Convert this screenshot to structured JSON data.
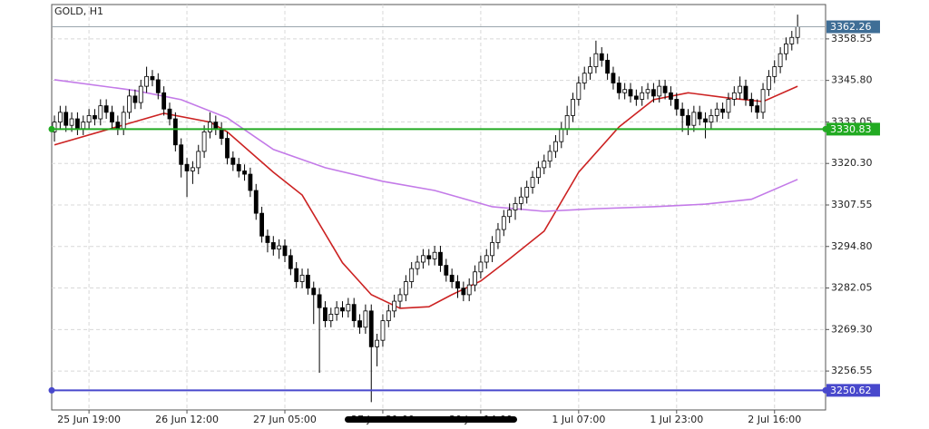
{
  "chart_data": {
    "type": "candlestick",
    "title": "GOLD, H1",
    "categories": [
      null,
      null,
      null,
      null,
      null,
      null,
      "25 Jun 19:00",
      null,
      null,
      null,
      null,
      null,
      null,
      null,
      null,
      null,
      null,
      null,
      null,
      null,
      null,
      null,
      null,
      "26 Jun 12:00",
      null,
      null,
      null,
      null,
      null,
      null,
      null,
      null,
      null,
      null,
      null,
      null,
      null,
      null,
      null,
      null,
      "27 Jun 05:00",
      null,
      null,
      null,
      null,
      null,
      null,
      null,
      null,
      null,
      null,
      null,
      null,
      null,
      null,
      null,
      null,
      "27 Jun 21:00",
      null,
      null,
      null,
      null,
      null,
      null,
      null,
      null,
      null,
      null,
      null,
      null,
      null,
      null,
      null,
      null,
      "30 Jun 14:00",
      null,
      null,
      null,
      null,
      null,
      null,
      null,
      null,
      null,
      null,
      null,
      null,
      null,
      null,
      null,
      null,
      "1 Jul 07:00",
      null,
      null,
      null,
      null,
      null,
      null,
      null,
      null,
      null,
      null,
      null,
      null,
      null,
      null,
      null,
      null,
      "1 Jul 23:00",
      null,
      null,
      null,
      null,
      null,
      null,
      null,
      null,
      null,
      null,
      null,
      null,
      null,
      null,
      null,
      null,
      "2 Jul 16:00",
      null,
      null,
      null,
      null
    ],
    "open": [
      3330,
      3333,
      3336,
      3332,
      3334,
      3331,
      3333,
      3335,
      3334,
      3338,
      3336,
      3333,
      3331,
      3336,
      3341,
      3339,
      3344,
      3347,
      3346,
      3342,
      3337,
      3334,
      3326,
      3320,
      3318,
      3319,
      3324,
      3330,
      3333,
      3331,
      3328,
      3322,
      3320,
      3318,
      3317,
      3312,
      3305,
      3298,
      3296,
      3294,
      3295,
      3292,
      3288,
      3284,
      3286,
      3282,
      3280,
      3276,
      3272,
      3274,
      3276,
      3275,
      3277,
      3272,
      3270,
      3275,
      3264,
      3266,
      3272,
      3275,
      3278,
      3280,
      3284,
      3288,
      3290,
      3292,
      3291,
      3293,
      3289,
      3286,
      3284,
      3282,
      3280,
      3283,
      3287,
      3290,
      3292,
      3296,
      3300,
      3304,
      3306,
      3308,
      3310,
      3313,
      3316,
      3319,
      3321,
      3324,
      3327,
      3331,
      3335,
      3340,
      3345,
      3348,
      3350,
      3354,
      3352,
      3348,
      3345,
      3342,
      3343,
      3341,
      3340,
      3342,
      3343,
      3341,
      3344,
      3342,
      3340,
      3337,
      3335,
      3332,
      3336,
      3334,
      3333,
      3335,
      3337,
      3336,
      3340,
      3342,
      3344,
      3340,
      3338,
      3336,
      3343,
      3347,
      3350,
      3354,
      3357,
      3359
    ],
    "high": [
      3335,
      3338,
      3338,
      3336,
      3336,
      3335,
      3337,
      3337,
      3340,
      3340,
      3338,
      3335,
      3338,
      3343,
      3343,
      3346,
      3350,
      3349,
      3348,
      3344,
      3339,
      3336,
      3328,
      3322,
      3321,
      3326,
      3332,
      3336,
      3335,
      3333,
      3330,
      3324,
      3322,
      3320,
      3319,
      3314,
      3307,
      3300,
      3298,
      3297,
      3297,
      3294,
      3290,
      3288,
      3288,
      3284,
      3282,
      3278,
      3276,
      3278,
      3278,
      3279,
      3279,
      3274,
      3277,
      3277,
      3268,
      3274,
      3277,
      3280,
      3282,
      3286,
      3290,
      3292,
      3294,
      3294,
      3295,
      3295,
      3291,
      3288,
      3286,
      3284,
      3285,
      3289,
      3292,
      3294,
      3298,
      3302,
      3306,
      3308,
      3310,
      3313,
      3315,
      3318,
      3321,
      3323,
      3326,
      3329,
      3333,
      3338,
      3342,
      3347,
      3350,
      3353,
      3358,
      3356,
      3354,
      3350,
      3347,
      3345,
      3345,
      3343,
      3344,
      3345,
      3345,
      3346,
      3346,
      3344,
      3342,
      3339,
      3337,
      3338,
      3338,
      3336,
      3337,
      3339,
      3339,
      3342,
      3344,
      3347,
      3346,
      3342,
      3340,
      3345,
      3349,
      3352,
      3356,
      3359,
      3361,
      3366
    ],
    "low": [
      3327,
      3331,
      3330,
      3330,
      3329,
      3329,
      3331,
      3332,
      3332,
      3334,
      3331,
      3329,
      3329,
      3334,
      3337,
      3337,
      3342,
      3344,
      3340,
      3335,
      3332,
      3324,
      3316,
      3310,
      3314,
      3317,
      3322,
      3328,
      3329,
      3326,
      3320,
      3318,
      3316,
      3315,
      3310,
      3303,
      3296,
      3293,
      3292,
      3291,
      3290,
      3286,
      3282,
      3282,
      3280,
      3271,
      3256,
      3270,
      3270,
      3272,
      3273,
      3273,
      3270,
      3268,
      3268,
      3247,
      3258,
      3264,
      3270,
      3273,
      3276,
      3278,
      3282,
      3286,
      3288,
      3289,
      3289,
      3287,
      3284,
      3282,
      3279,
      3278,
      3278,
      3281,
      3285,
      3288,
      3290,
      3294,
      3298,
      3302,
      3303,
      3306,
      3308,
      3311,
      3314,
      3317,
      3319,
      3322,
      3325,
      3329,
      3333,
      3338,
      3343,
      3346,
      3348,
      3350,
      3346,
      3343,
      3340,
      3340,
      3339,
      3338,
      3338,
      3340,
      3339,
      3339,
      3340,
      3338,
      3335,
      3330,
      3329,
      3330,
      3332,
      3328,
      3331,
      3333,
      3334,
      3334,
      3338,
      3340,
      3338,
      3336,
      3334,
      3334,
      3341,
      3345,
      3348,
      3352,
      3355,
      3357
    ],
    "close": [
      3333,
      3336,
      3332,
      3334,
      3331,
      3333,
      3335,
      3334,
      3338,
      3336,
      3333,
      3331,
      3336,
      3341,
      3339,
      3344,
      3347,
      3346,
      3342,
      3337,
      3334,
      3326,
      3320,
      3318,
      3319,
      3324,
      3330,
      3333,
      3331,
      3328,
      3322,
      3320,
      3318,
      3317,
      3312,
      3305,
      3298,
      3296,
      3294,
      3295,
      3292,
      3288,
      3284,
      3286,
      3282,
      3280,
      3276,
      3272,
      3274,
      3276,
      3275,
      3277,
      3272,
      3270,
      3275,
      3264,
      3266,
      3272,
      3275,
      3278,
      3280,
      3284,
      3288,
      3290,
      3292,
      3291,
      3293,
      3289,
      3286,
      3284,
      3282,
      3280,
      3283,
      3287,
      3290,
      3292,
      3296,
      3300,
      3304,
      3306,
      3308,
      3310,
      3313,
      3316,
      3319,
      3321,
      3324,
      3327,
      3331,
      3335,
      3340,
      3345,
      3348,
      3350,
      3354,
      3352,
      3348,
      3345,
      3342,
      3343,
      3341,
      3340,
      3342,
      3343,
      3341,
      3344,
      3342,
      3340,
      3337,
      3335,
      3332,
      3336,
      3334,
      3333,
      3335,
      3337,
      3336,
      3340,
      3342,
      3344,
      3340,
      3338,
      3336,
      3343,
      3347,
      3350,
      3354,
      3357,
      3359,
      3362.26
    ],
    "series": [
      {
        "color": "#cc2222",
        "x": [
          0,
          19,
          27,
          30,
          38,
          43,
          50,
          55,
          60,
          65,
          69,
          74,
          79,
          85,
          91,
          98,
          104,
          110,
          117,
          123,
          129
        ],
        "values": [
          3326,
          3335.7,
          3333,
          3330,
          3317.6,
          3310.6,
          3289.8,
          3280,
          3275.8,
          3276.3,
          3280,
          3284.2,
          3291,
          3299.5,
          3317.6,
          3331.5,
          3339.9,
          3342,
          3340.4,
          3339.3,
          3344
        ]
      },
      {
        "color": "#c37ae8",
        "x": [
          0,
          14,
          22,
          30,
          38,
          47,
          57,
          66,
          76,
          85,
          94,
          104,
          113,
          121,
          129
        ],
        "values": [
          3346,
          3342.7,
          3339.9,
          3334.3,
          3324.6,
          3319,
          3314.8,
          3312,
          3307,
          3305.6,
          3306.4,
          3307,
          3307.8,
          3309.3,
          3315.4
        ]
      }
    ],
    "levels": [
      {
        "value": 3362.26,
        "color": "#9aa5ad",
        "label_color": "#3f6e96"
      },
      {
        "value": 3330.83,
        "color": "#22aa22",
        "label_color": "#22aa22"
      },
      {
        "value": 3250.62,
        "color": "#4848cc",
        "label_color": "#4848cc"
      }
    ],
    "up_color": "#ffffff",
    "down_color": "#000000",
    "ylim": [
      3244.6,
      3369.1
    ],
    "yticks": [
      3256.55,
      {
        "value": 3269.3,
        "label": "3269.30"
      },
      3282.05,
      {
        "value": 3294.8,
        "label": "3294.80"
      },
      3307.55,
      {
        "value": 3320.3,
        "label": "3320.30"
      },
      3333.05,
      {
        "value": 3345.8,
        "label": "3345.80"
      },
      3358.55
    ],
    "grid": true
  }
}
